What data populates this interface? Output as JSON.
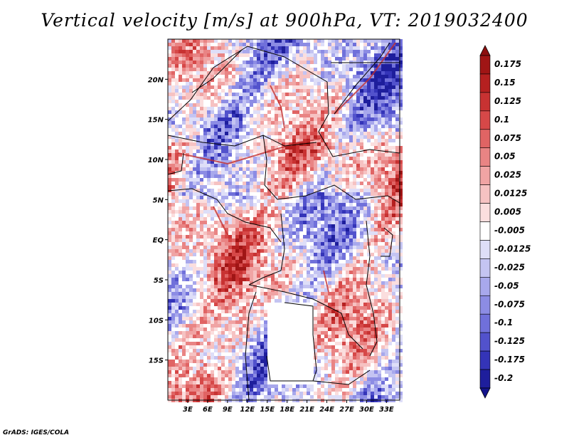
{
  "title": "Vertical velocity [m/s] at 900hPa, VT: 2019032400",
  "credit": "GrADS: IGES/COLA",
  "map": {
    "lon_range": [
      0,
      35
    ],
    "lat_range": [
      -20,
      25
    ],
    "lat_ticks": [
      {
        "lat": 20,
        "label": "20N"
      },
      {
        "lat": 15,
        "label": "15N"
      },
      {
        "lat": 10,
        "label": "10N"
      },
      {
        "lat": 5,
        "label": "5N"
      },
      {
        "lat": 0,
        "label": "EQ"
      },
      {
        "lat": -5,
        "label": "5S"
      },
      {
        "lat": -10,
        "label": "10S"
      },
      {
        "lat": -15,
        "label": "15S"
      }
    ],
    "lon_ticks": [
      {
        "lon": 3,
        "label": "3E"
      },
      {
        "lon": 6,
        "label": "6E"
      },
      {
        "lon": 9,
        "label": "9E"
      },
      {
        "lon": 12,
        "label": "12E"
      },
      {
        "lon": 15,
        "label": "15E"
      },
      {
        "lon": 18,
        "label": "18E"
      },
      {
        "lon": 21,
        "label": "21E"
      },
      {
        "lon": 24,
        "label": "24E"
      },
      {
        "lon": 27,
        "label": "27E"
      },
      {
        "lon": 30,
        "label": "30E"
      },
      {
        "lon": 33,
        "label": "33E"
      }
    ]
  },
  "colorbar": {
    "levels": [
      {
        "label": "0.175",
        "color": "#a01515"
      },
      {
        "label": "0.15",
        "color": "#b52020"
      },
      {
        "label": "0.125",
        "color": "#c83232"
      },
      {
        "label": "0.1",
        "color": "#d64848"
      },
      {
        "label": "0.075",
        "color": "#e06464"
      },
      {
        "label": "0.05",
        "color": "#e98484"
      },
      {
        "label": "0.025",
        "color": "#f0a4a4"
      },
      {
        "label": "0.0125",
        "color": "#f6c2c2"
      },
      {
        "label": "0.005",
        "color": "#fbdede"
      },
      {
        "label": "-0.005",
        "color": "#ffffff"
      },
      {
        "label": "-0.0125",
        "color": "#dedef8"
      },
      {
        "label": "-0.025",
        "color": "#c4c4f2"
      },
      {
        "label": "-0.05",
        "color": "#a8a8ec"
      },
      {
        "label": "-0.075",
        "color": "#8c8ce4"
      },
      {
        "label": "-0.1",
        "color": "#7070da"
      },
      {
        "label": "-0.125",
        "color": "#5252cc"
      },
      {
        "label": "-0.175",
        "color": "#3434b8"
      },
      {
        "label": "-0.2",
        "color": "#1e1e9c"
      }
    ],
    "top_color": "#8c1010",
    "bottom_color": "#14148c"
  }
}
